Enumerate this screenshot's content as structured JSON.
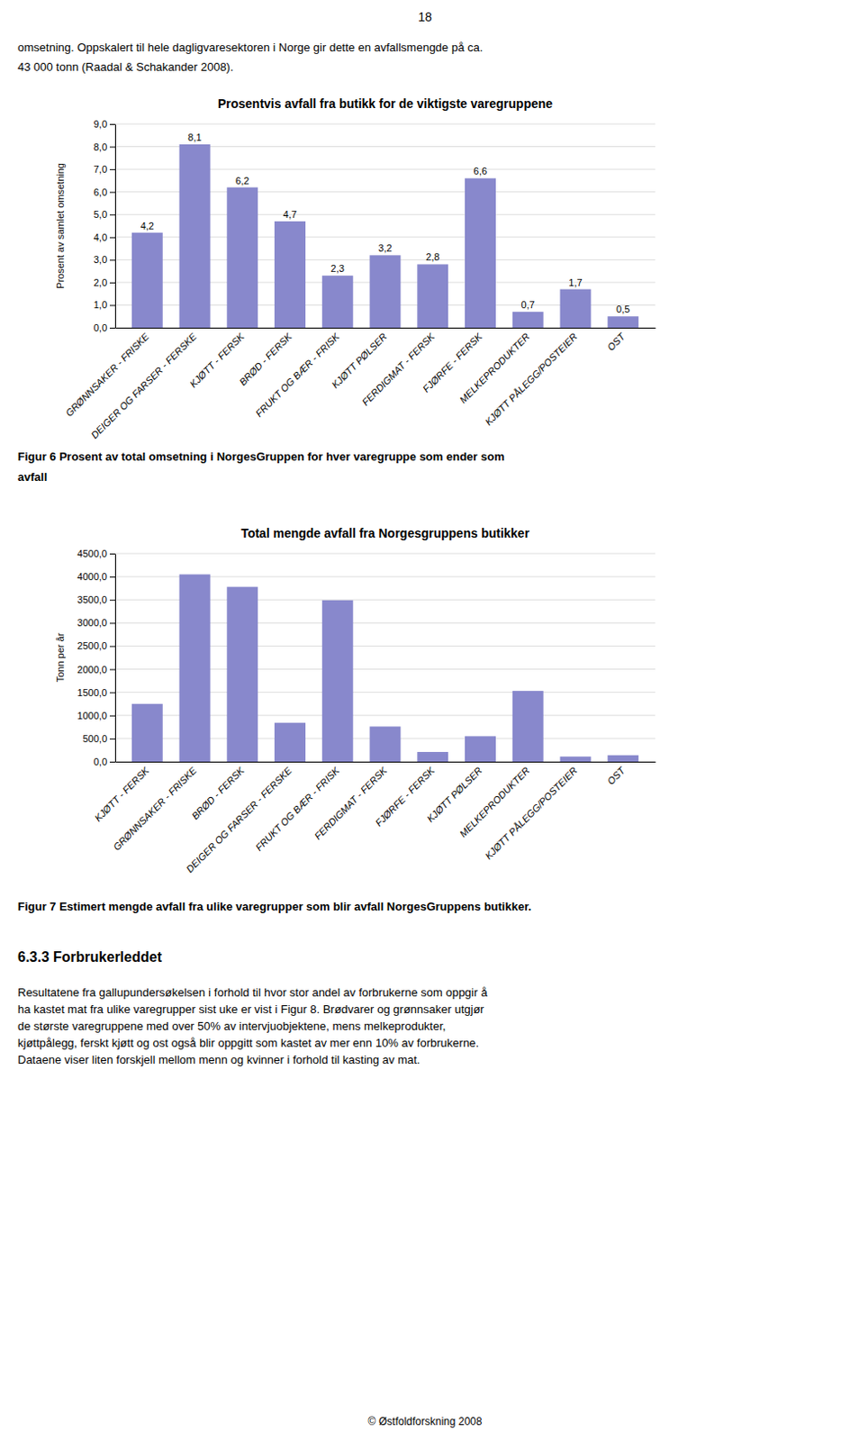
{
  "page_number": "18",
  "text_lines": [
    "omsetning.  Oppskalert til hele dagligvaresektoren i Norge gir dette en avfallsmengde på ca.",
    "43 000 tonn (Raadal & Schakander 2008)."
  ],
  "chart_data": [
    {
      "type": "bar",
      "title": "Prosentvis avfall fra butikk for de viktigste varegruppene",
      "ylabel": "Prosent av samlet omsetning",
      "categories": [
        "GRØNNSAKER - FRISKE",
        "DEIGER OG FARSER - FERSKE",
        "KJØTT - FERSK",
        "BRØD - FERSK",
        "FRUKT OG BÆR - FRISK",
        "KJØTT PØLSER",
        "FERDIGMAT - FERSK",
        "FJØRFE - FERSK",
        "MELKEPRODUKTER",
        "KJØTT PÅLEGG/POSTEIER",
        "OST"
      ],
      "values": [
        4.2,
        8.1,
        6.2,
        4.7,
        2.3,
        3.2,
        2.8,
        6.6,
        0.7,
        1.7,
        0.5
      ],
      "value_labels": [
        "4,2",
        "8,1",
        "6,2",
        "4,7",
        "2,3",
        "3,2",
        "2,8",
        "6,6",
        "0,7",
        "1,7",
        "0,5"
      ],
      "data_labels": true,
      "color": "#8888cc",
      "ylim": [
        0.0,
        9.0
      ],
      "yticks": [
        {
          "value": 0.0,
          "label": "0,0"
        },
        {
          "value": 1.0,
          "label": "1,0"
        },
        {
          "value": 2.0,
          "label": "2,0"
        },
        {
          "value": 3.0,
          "label": "3,0"
        },
        {
          "value": 4.0,
          "label": "4,0"
        },
        {
          "value": 5.0,
          "label": "5,0"
        },
        {
          "value": 6.0,
          "label": "6,0"
        },
        {
          "value": 7.0,
          "label": "7,0"
        },
        {
          "value": 8.0,
          "label": "8,0"
        },
        {
          "value": 9.0,
          "label": "9,0"
        }
      ],
      "grid": true
    },
    {
      "type": "bar",
      "title": "Total mengde avfall fra Norgesgruppens butikker",
      "ylabel": "Tonn per år",
      "categories": [
        "KJØTT - FERSK",
        "GRØNNSAKER - FRISKE",
        "BRØD - FERSK",
        "DEIGER OG FARSER - FERSKE",
        "FRUKT OG BÆR - FRISK",
        "FERDIGMAT - FERSK",
        "FJØRFE - FERSK",
        "KJØTT PØLSER",
        "MELKEPRODUKTER",
        "KJØTT PÅLEGG/POSTEIER",
        "OST"
      ],
      "values": [
        1250.0,
        4050.0,
        3780.0,
        840.0,
        3490.0,
        760.0,
        210.0,
        550.0,
        1530.0,
        110.0,
        140.0
      ],
      "color": "#8888cc",
      "ylim": [
        0.0,
        4500.0
      ],
      "yticks": [
        {
          "value": 0.0,
          "label": "0,0"
        },
        {
          "value": 500.0,
          "label": "500,0"
        },
        {
          "value": 1000.0,
          "label": "1000,0"
        },
        {
          "value": 1500.0,
          "label": "1500,0"
        },
        {
          "value": 2000.0,
          "label": "2000,0"
        },
        {
          "value": 2500.0,
          "label": "2500,0"
        },
        {
          "value": 3000.0,
          "label": "3000,0"
        },
        {
          "value": 3500.0,
          "label": "3500,0"
        },
        {
          "value": 4000.0,
          "label": "4000,0"
        },
        {
          "value": 4500.0,
          "label": "4500,0"
        }
      ],
      "grid": true
    }
  ],
  "figur6_lines": [
    "Figur 6  Prosent av total omsetning i NorgesGruppen for hver varegruppe som ender som",
    "avfall"
  ],
  "figur7_text": "Figur 7  Estimert mengde avfall fra ulike varegrupper som blir avfall  NorgesGruppens butikker.",
  "section_title": "6.3.3  Forbrukerleddet",
  "body_lines": [
    "Resultatene fra gallupundersøkelsen i forhold til hvor stor andel av forbrukerne som oppgir å",
    "ha kastet mat fra ulike varegrupper sist uke er vist i Figur 8.  Brødvarer og grønnsaker utgjør",
    "de største varegruppene med over 50% av intervjuobjektene, mens melkeprodukter,",
    "kjøttpålegg, ferskt kjøtt og ost også blir oppgitt som kastet av mer enn 10% av forbrukerne.",
    "Dataene viser liten forskjell mellom menn og kvinner i forhold til kasting av mat."
  ],
  "footer_text": "© Østfoldforskning 2008"
}
